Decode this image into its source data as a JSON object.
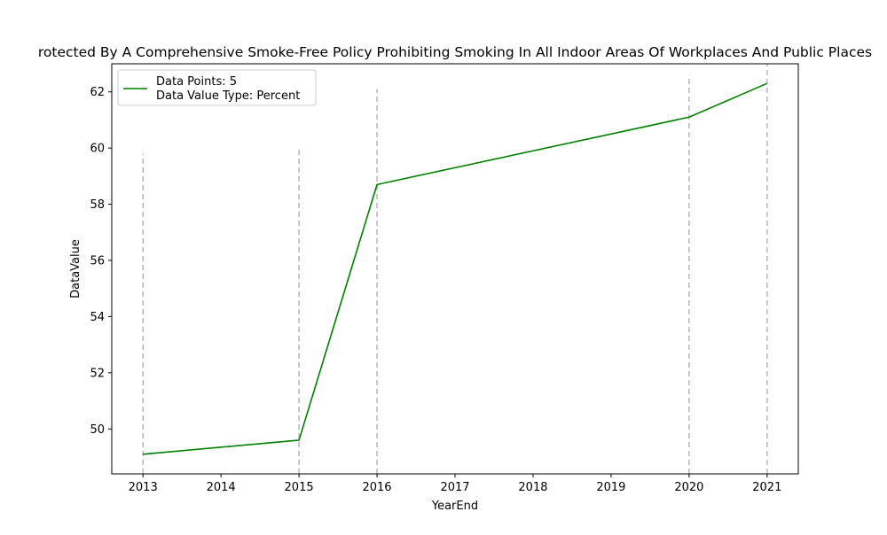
{
  "chart_data": {
    "type": "line",
    "title": "rotected By A Comprehensive Smoke-Free Policy Prohibiting Smoking In All Indoor Areas Of Workplaces And Public Places",
    "xlabel": "YearEnd",
    "ylabel": "DataValue",
    "x": [
      2013,
      2015,
      2016,
      2020,
      2021
    ],
    "series": [
      {
        "values": [
          49.1,
          49.6,
          58.7,
          61.1,
          62.3
        ],
        "color": "#008000"
      }
    ],
    "legend": {
      "placement": "upper-left",
      "lines": [
        "Data Points: 5",
        "Data Value Type: Percent"
      ]
    },
    "xlim": [
      2012.6,
      2021.4
    ],
    "ylim": [
      48.4,
      63.0
    ],
    "x_ticks": [
      2013,
      2014,
      2015,
      2016,
      2017,
      2018,
      2019,
      2020,
      2021
    ],
    "y_ticks": [
      50,
      52,
      54,
      56,
      58,
      60,
      62
    ],
    "vertical_markers": [
      {
        "x": 2013,
        "y_top": 59.8
      },
      {
        "x": 2015,
        "y_top": 60.0
      },
      {
        "x": 2016,
        "y_top": 62.1
      },
      {
        "x": 2020,
        "y_top": 62.6
      },
      {
        "x": 2021,
        "y_top": 63.0
      }
    ],
    "marker_color": "#bbbbbb",
    "grid": false
  }
}
